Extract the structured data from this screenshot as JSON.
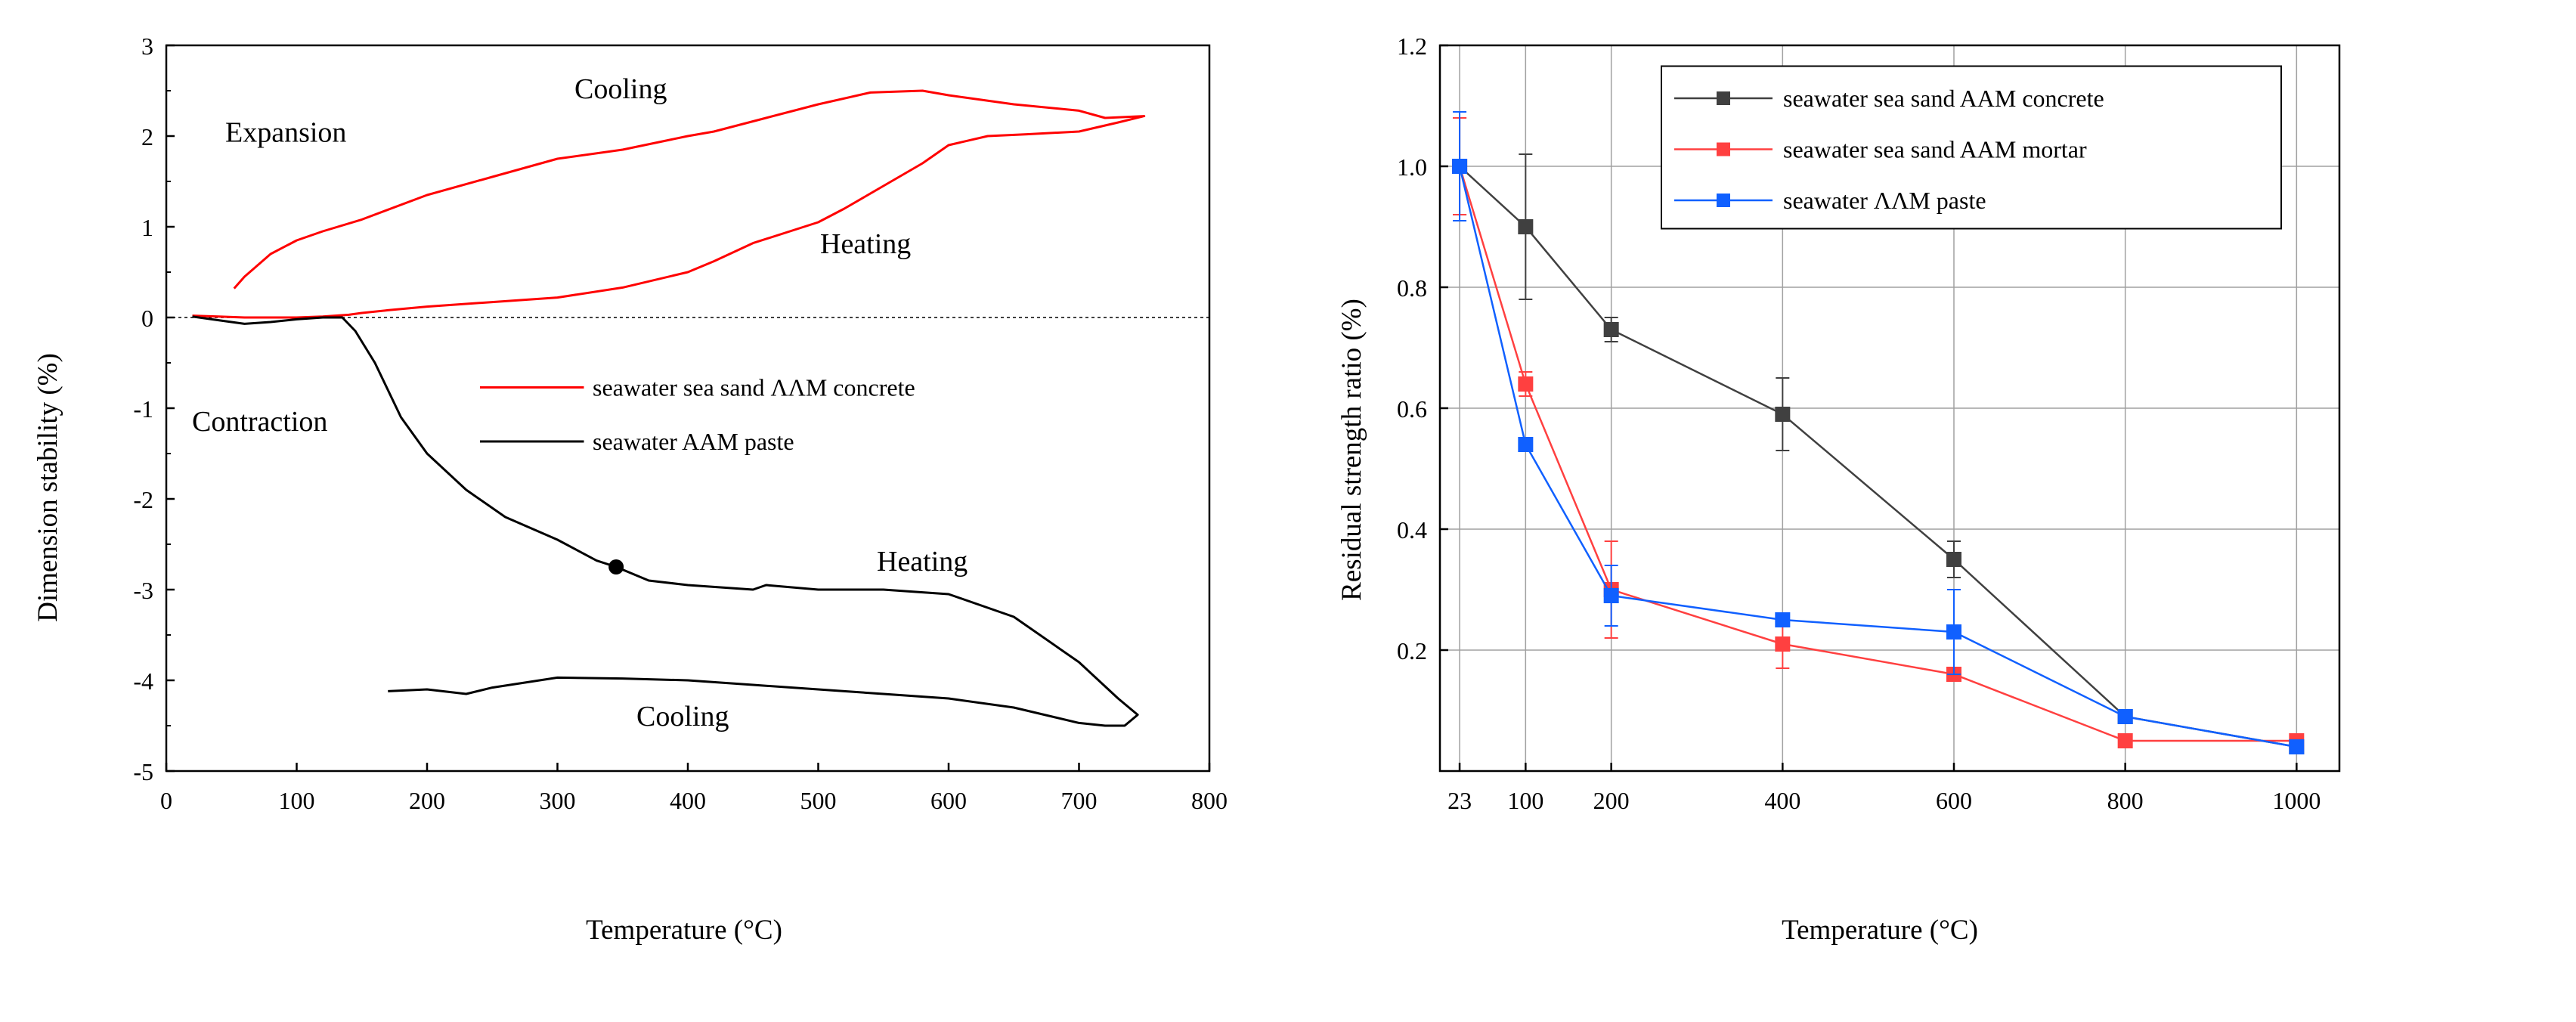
{
  "chart_data": [
    {
      "type": "line",
      "xlabel": "Temperature (°C)",
      "ylabel": "Dimension stability (%)",
      "xlim": [
        0,
        800
      ],
      "ylim": [
        -5,
        3
      ],
      "xticks": [
        0,
        100,
        200,
        300,
        400,
        500,
        600,
        700,
        800
      ],
      "yticks": [
        -5,
        -4,
        -3,
        -2,
        -1,
        0,
        1,
        2,
        3
      ],
      "reference_line": 0,
      "legend": {
        "placement": "center-right"
      },
      "series": [
        {
          "name": "seawater sea sand ΛΛM concrete",
          "color": "#ff0000",
          "points": [
            [
              20,
              0.02
            ],
            [
              40,
              0.01
            ],
            [
              60,
              0.0
            ],
            [
              80,
              0.0
            ],
            [
              100,
              0.0
            ],
            [
              120,
              0.01
            ],
            [
              140,
              0.03
            ],
            [
              150,
              0.05
            ],
            [
              170,
              0.08
            ],
            [
              200,
              0.12
            ],
            [
              250,
              0.17
            ],
            [
              300,
              0.22
            ],
            [
              350,
              0.33
            ],
            [
              400,
              0.5
            ],
            [
              420,
              0.62
            ],
            [
              450,
              0.82
            ],
            [
              500,
              1.05
            ],
            [
              520,
              1.2
            ],
            [
              550,
              1.45
            ],
            [
              580,
              1.7
            ],
            [
              600,
              1.9
            ],
            [
              630,
              2.0
            ],
            [
              660,
              2.02
            ],
            [
              700,
              2.05
            ],
            [
              730,
              2.15
            ],
            [
              750,
              2.22
            ],
            [
              720,
              2.2
            ],
            [
              700,
              2.28
            ],
            [
              650,
              2.35
            ],
            [
              600,
              2.45
            ],
            [
              580,
              2.5
            ],
            [
              540,
              2.48
            ],
            [
              500,
              2.35
            ],
            [
              460,
              2.2
            ],
            [
              420,
              2.05
            ],
            [
              400,
              2.0
            ],
            [
              350,
              1.85
            ],
            [
              300,
              1.75
            ],
            [
              250,
              1.55
            ],
            [
              200,
              1.35
            ],
            [
              150,
              1.08
            ],
            [
              120,
              0.95
            ],
            [
              100,
              0.85
            ],
            [
              80,
              0.7
            ],
            [
              60,
              0.45
            ],
            [
              52,
              0.32
            ]
          ]
        },
        {
          "name": "seawater AAM paste",
          "color": "#000000",
          "points": [
            [
              20,
              0.01
            ],
            [
              40,
              -0.03
            ],
            [
              60,
              -0.07
            ],
            [
              80,
              -0.05
            ],
            [
              100,
              -0.02
            ],
            [
              120,
              0.0
            ],
            [
              135,
              0.0
            ],
            [
              145,
              -0.15
            ],
            [
              160,
              -0.5
            ],
            [
              180,
              -1.1
            ],
            [
              200,
              -1.5
            ],
            [
              230,
              -1.9
            ],
            [
              260,
              -2.2
            ],
            [
              300,
              -2.45
            ],
            [
              330,
              -2.68
            ],
            [
              345,
              -2.75
            ],
            [
              370,
              -2.9
            ],
            [
              400,
              -2.95
            ],
            [
              450,
              -3.0
            ],
            [
              460,
              -2.95
            ],
            [
              500,
              -3.0
            ],
            [
              550,
              -3.0
            ],
            [
              600,
              -3.05
            ],
            [
              650,
              -3.3
            ],
            [
              700,
              -3.8
            ],
            [
              730,
              -4.2
            ],
            [
              745,
              -4.38
            ],
            [
              735,
              -4.5
            ],
            [
              720,
              -4.5
            ],
            [
              700,
              -4.47
            ],
            [
              650,
              -4.3
            ],
            [
              600,
              -4.2
            ],
            [
              550,
              -4.15
            ],
            [
              500,
              -4.1
            ],
            [
              450,
              -4.05
            ],
            [
              400,
              -4.0
            ],
            [
              350,
              -3.98
            ],
            [
              300,
              -3.97
            ],
            [
              250,
              -4.08
            ],
            [
              230,
              -4.15
            ],
            [
              200,
              -4.1
            ],
            [
              170,
              -4.12
            ]
          ]
        }
      ],
      "marker_point": [
        345,
        -2.75
      ],
      "annotations": {
        "cooling_top": "Cooling",
        "expansion": "Expansion",
        "heating_top": "Heating",
        "contraction": "Contraction",
        "heating_bottom": "Heating",
        "cooling_bottom": "Cooling"
      }
    },
    {
      "type": "line",
      "xlabel": "Temperature (°C)",
      "ylabel": "Residual strength ratio (%)",
      "xlim": [
        0,
        1050
      ],
      "ylim": [
        0,
        1.2
      ],
      "xticks": [
        23,
        100,
        200,
        400,
        600,
        800,
        1000
      ],
      "yticks": [
        0.2,
        0.4,
        0.6,
        0.8,
        1.0,
        1.2
      ],
      "ytick_labels": [
        "0.2",
        "0.4",
        "0.6",
        "0.8",
        "1.0",
        "1.2"
      ],
      "grid": true,
      "legend": {
        "placement": "top-right"
      },
      "series": [
        {
          "name": "seawater sea sand AAM concrete",
          "color": "#404040",
          "x": [
            23,
            100,
            200,
            400,
            600,
            800,
            1000
          ],
          "values": [
            1.0,
            0.9,
            0.73,
            0.59,
            0.35,
            0.09,
            0.04
          ],
          "errors": [
            0.08,
            0.12,
            0.02,
            0.06,
            0.03,
            0.01,
            0.01
          ]
        },
        {
          "name": "seawater sea sand AAM mortar",
          "color": "#ff4040",
          "x": [
            23,
            100,
            200,
            400,
            600,
            800,
            1000
          ],
          "values": [
            1.0,
            0.64,
            0.3,
            0.21,
            0.16,
            0.05,
            0.05
          ],
          "errors": [
            0.08,
            0.02,
            0.08,
            0.04,
            0.01,
            0.0,
            0.0
          ]
        },
        {
          "name": "seawater ΛΛM paste",
          "color": "#1060ff",
          "x": [
            23,
            100,
            200,
            400,
            600,
            800,
            1000
          ],
          "values": [
            1.0,
            0.54,
            0.29,
            0.25,
            0.23,
            0.09,
            0.04
          ],
          "errors": [
            0.09,
            0.0,
            0.05,
            0.0,
            0.07,
            0.0,
            0.0
          ]
        }
      ]
    }
  ]
}
